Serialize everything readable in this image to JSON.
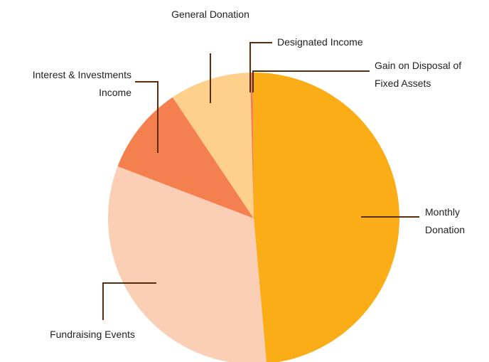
{
  "chart_data": {
    "type": "pie",
    "categories": [
      "Monthly Donation",
      "Fundraising Events",
      "Interest & Investments Income",
      "General Donation",
      "Designated Income",
      "Gain on Disposal of Fixed Assets"
    ],
    "values": [
      48.6,
      32.2,
      9.8,
      9.0,
      0.3,
      0.1
    ],
    "colors": [
      "#fbad18",
      "#fbcfb5",
      "#f5804f",
      "#ffd08c",
      "#f5804f",
      "#fbad18"
    ]
  }
}
